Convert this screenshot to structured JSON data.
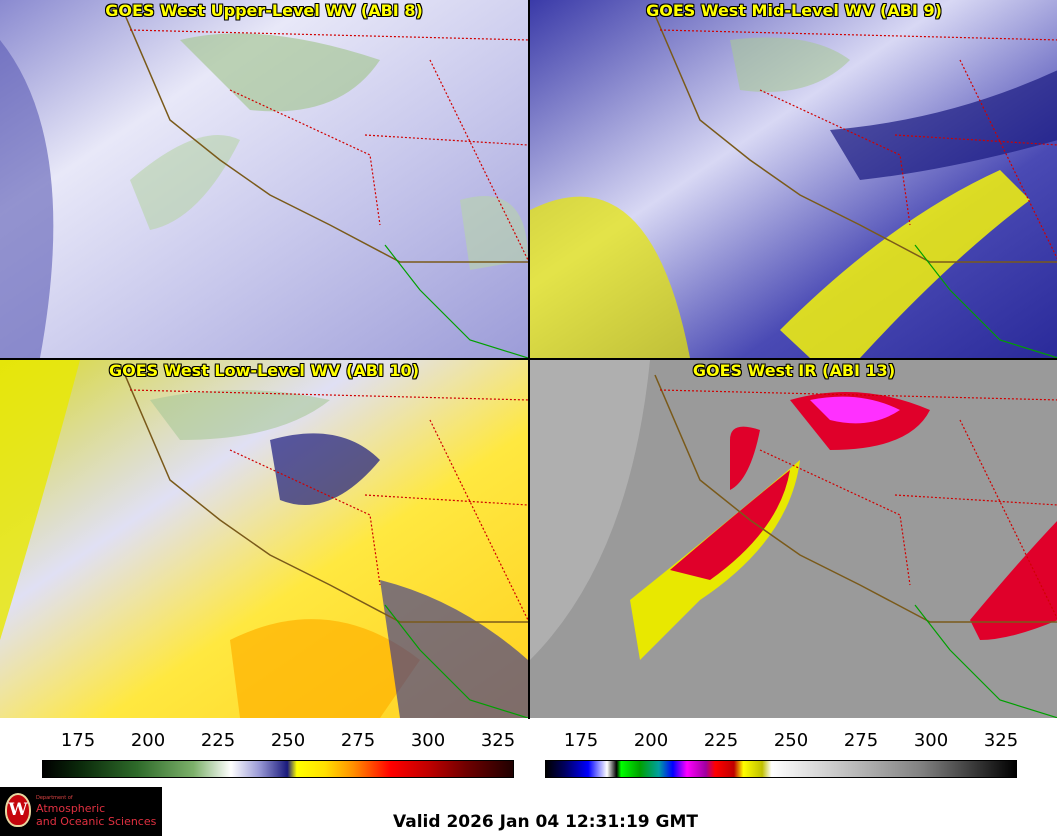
{
  "panels": [
    {
      "title": "GOES West Upper-Level WV (ABI 8)",
      "palette": "wv"
    },
    {
      "title": "GOES West Mid-Level WV (ABI 9)",
      "palette": "wv"
    },
    {
      "title": "GOES West Low-Level WV (ABI 10)",
      "palette": "wv"
    },
    {
      "title": "GOES West IR (ABI 13)",
      "palette": "ir"
    }
  ],
  "colorbars": [
    {
      "name": "water-vapor",
      "ticks": [
        "175",
        "200",
        "225",
        "250",
        "275",
        "300",
        "325"
      ]
    },
    {
      "name": "infrared",
      "ticks": [
        "175",
        "200",
        "225",
        "250",
        "275",
        "300",
        "325"
      ]
    }
  ],
  "colors": {
    "title_text": "#ffff00",
    "state_borders": "#d00000",
    "coastline": "#7a5a1a",
    "mexico_coast": "#00a000"
  },
  "logo": {
    "dept": "Department of",
    "line1": "Atmospheric",
    "line2": "and Oceanic Sciences",
    "seal_letter": "W"
  },
  "footer": {
    "valid": "Valid 2026 Jan 04 12:31:19 GMT"
  }
}
